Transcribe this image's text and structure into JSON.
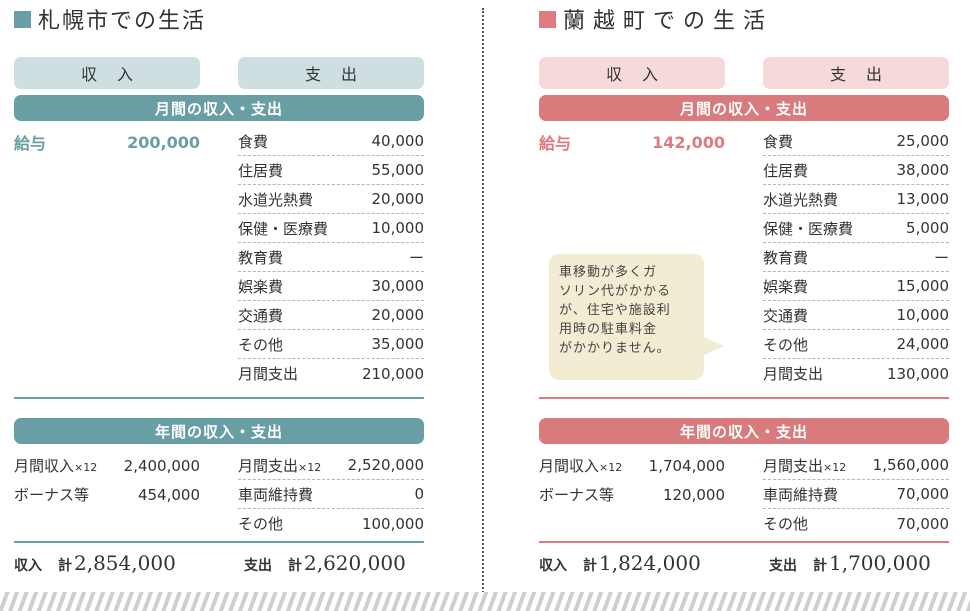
{
  "left": {
    "title": "札幌市での生活",
    "income_pill": "収入",
    "expense_pill": "支出",
    "monthly_band": "月間の収入・支出",
    "salary": {
      "label": "給与",
      "value": "200,000"
    },
    "monthly_expenses": [
      {
        "label": "食費",
        "value": "40,000"
      },
      {
        "label": "住居費",
        "value": "55,000"
      },
      {
        "label": "水道光熱費",
        "value": "20,000"
      },
      {
        "label": "保健・医療費",
        "value": "10,000"
      },
      {
        "label": "教育費",
        "value": "ー"
      },
      {
        "label": "娯楽費",
        "value": "30,000"
      },
      {
        "label": "交通費",
        "value": "20,000"
      },
      {
        "label": "その他",
        "value": "35,000"
      },
      {
        "label": "月間支出",
        "value": "210,000"
      }
    ],
    "annual_band": "年間の収入・支出",
    "annual_income": [
      {
        "label": "月間収入",
        "suffix": "×12",
        "value": "2,400,000"
      },
      {
        "label": "ボーナス等",
        "suffix": "",
        "value": "454,000"
      }
    ],
    "annual_expenses": [
      {
        "label": "月間支出",
        "suffix": "×12",
        "value": "2,520,000"
      },
      {
        "label": "車両維持費",
        "suffix": "",
        "value": "0"
      },
      {
        "label": "その他",
        "suffix": "",
        "value": "100,000"
      }
    ],
    "total_income": {
      "label": "収入",
      "kei": "計",
      "value": "2,854,000"
    },
    "total_expense": {
      "label": "支出",
      "kei": "計",
      "value": "2,620,000"
    }
  },
  "right": {
    "title": "蘭越町での生活",
    "income_pill": "収入",
    "expense_pill": "支出",
    "monthly_band": "月間の収入・支出",
    "salary": {
      "label": "給与",
      "value": "142,000"
    },
    "monthly_expenses": [
      {
        "label": "食費",
        "value": "25,000"
      },
      {
        "label": "住居費",
        "value": "38,000"
      },
      {
        "label": "水道光熱費",
        "value": "13,000"
      },
      {
        "label": "保健・医療費",
        "value": "5,000"
      },
      {
        "label": "教育費",
        "value": "ー"
      },
      {
        "label": "娯楽費",
        "value": "15,000"
      },
      {
        "label": "交通費",
        "value": "10,000"
      },
      {
        "label": "その他",
        "value": "24,000"
      },
      {
        "label": "月間支出",
        "value": "130,000"
      }
    ],
    "annual_band": "年間の収入・支出",
    "annual_income": [
      {
        "label": "月間収入",
        "suffix": "×12",
        "value": "1,704,000"
      },
      {
        "label": "ボーナス等",
        "suffix": "",
        "value": "120,000"
      }
    ],
    "annual_expenses": [
      {
        "label": "月間支出",
        "suffix": "×12",
        "value": "1,560,000"
      },
      {
        "label": "車両維持費",
        "suffix": "",
        "value": "70,000"
      },
      {
        "label": "その他",
        "suffix": "",
        "value": "70,000"
      }
    ],
    "total_income": {
      "label": "収入",
      "kei": "計",
      "value": "1,824,000"
    },
    "total_expense": {
      "label": "支出",
      "kei": "計",
      "value": "1,700,000"
    },
    "bubble_lines": [
      "車移動が多くガ",
      "ソリン代がかかる",
      "が、住宅や施設利",
      "用時の駐車料金",
      "がかかりません。"
    ]
  }
}
